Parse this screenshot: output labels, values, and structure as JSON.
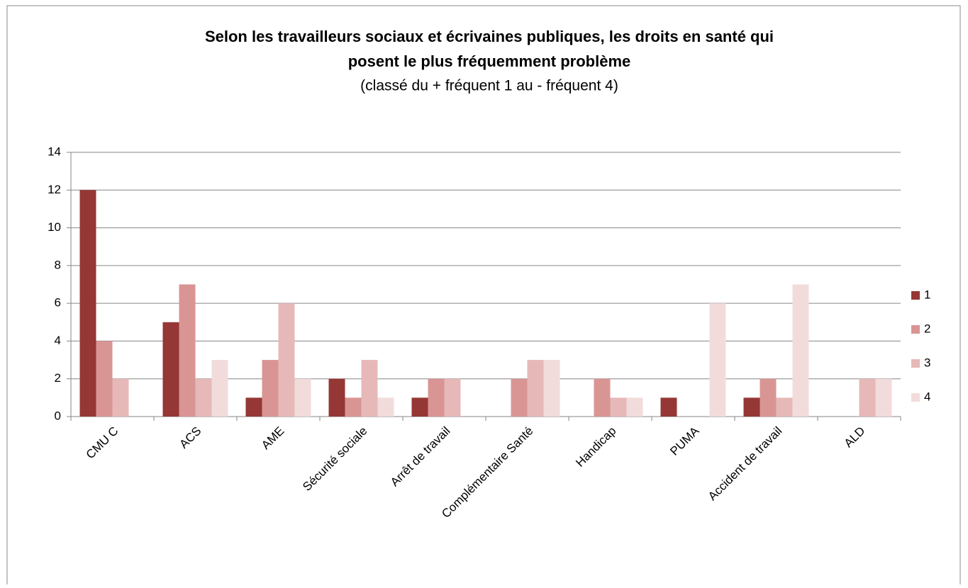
{
  "chart_data": {
    "type": "bar",
    "title": [
      "Selon les travailleurs sociaux et écrivaines publiques, les droits en santé qui",
      "posent le plus fréquemment problème"
    ],
    "subtitle": "(classé du + fréquent 1 au - fréquent 4)",
    "categories": [
      "CMU C",
      "ACS",
      "AME",
      "Sécurité sociale",
      "Arrêt de travail",
      "Complémentaire Santé",
      "Handicap",
      "PUMA",
      "Accident de travail",
      "ALD"
    ],
    "series": [
      {
        "name": "1",
        "color": "#953735",
        "values": [
          12,
          5,
          1,
          2,
          1,
          0,
          0,
          1,
          1,
          0
        ]
      },
      {
        "name": "2",
        "color": "#d99594",
        "values": [
          4,
          7,
          3,
          1,
          2,
          2,
          2,
          0,
          2,
          0
        ]
      },
      {
        "name": "3",
        "color": "#e6b9b8",
        "values": [
          2,
          2,
          6,
          3,
          2,
          3,
          1,
          0,
          1,
          2
        ]
      },
      {
        "name": "4",
        "color": "#f2dcdb",
        "values": [
          0,
          3,
          2,
          1,
          0,
          3,
          1,
          6,
          7,
          2
        ]
      }
    ],
    "ylim": [
      0,
      14
    ],
    "yticks": [
      0,
      2,
      4,
      6,
      8,
      10,
      12,
      14
    ],
    "grid": true,
    "legend": "right"
  }
}
